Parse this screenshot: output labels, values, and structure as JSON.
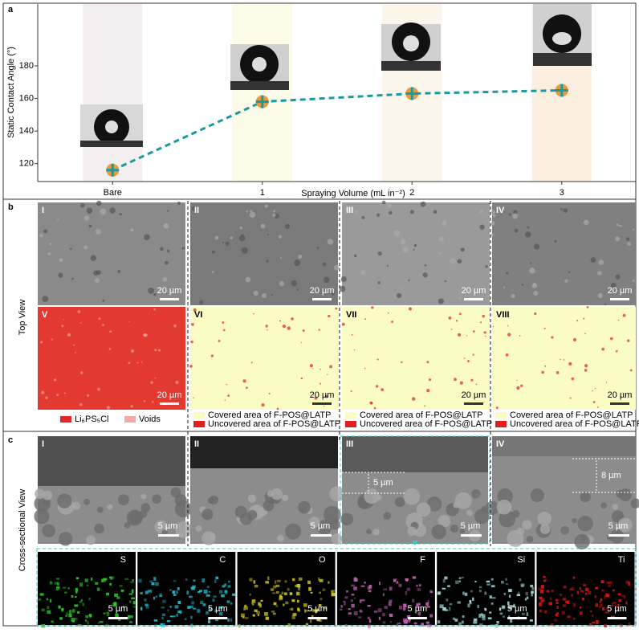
{
  "chart_data": {
    "type": "line",
    "panel_label": "a",
    "ylabel": "Static Contact Angle (°)",
    "xlabel": "Spraying Volume (mL in⁻²)",
    "categories": [
      "Bare",
      "1",
      "2",
      "3"
    ],
    "values": [
      116,
      158,
      163,
      165
    ],
    "color": "#1a9aa0",
    "marker_color": "#e99a3c",
    "band_colors": [
      "#f3eef0",
      "#fbfbe8",
      "#fcf5ea",
      "#fcefdf"
    ],
    "ylim": [
      109,
      218
    ],
    "yticks": [
      120,
      140,
      160,
      180
    ]
  },
  "panel_b": {
    "label": "b",
    "side_label": "Top View",
    "images": [
      {
        "label": "I",
        "scale": "20 µm"
      },
      {
        "label": "II",
        "scale": "20 µm"
      },
      {
        "label": "III",
        "scale": "20 µm"
      },
      {
        "label": "IV",
        "scale": "20 µm"
      },
      {
        "label": "V",
        "scale": "20 µm"
      },
      {
        "label": "VI",
        "scale": "20 µm"
      },
      {
        "label": "VII",
        "scale": "20 µm"
      },
      {
        "label": "VIII",
        "scale": "20 µm"
      }
    ],
    "legends": [
      [
        "Li₆PS₅Cl",
        "Voids"
      ],
      [
        "Covered area of F-POS@LATP",
        "Uncovered area of F-POS@LATP"
      ],
      [
        "Covered area of F-POS@LATP",
        "Uncovered area of F-POS@LATP"
      ],
      [
        "Covered area of F-POS@LATP",
        "Uncovered area of F-POS@LATP"
      ]
    ]
  },
  "panel_c": {
    "label": "c",
    "side_label": "Cross-sectional View",
    "images": [
      {
        "label": "I",
        "scale": "5 µm"
      },
      {
        "label": "II",
        "scale": "5 µm"
      },
      {
        "label": "III",
        "scale": "5 µm",
        "thickness": "5 µm"
      },
      {
        "label": "IV",
        "scale": "5 µm",
        "thickness": "8 µm"
      }
    ],
    "maps": [
      {
        "element": "S",
        "scale": "5 µm",
        "color": "#2ec82e"
      },
      {
        "element": "C",
        "scale": "5 µm",
        "color": "#20b8c8"
      },
      {
        "element": "O",
        "scale": "5 µm",
        "color": "#c8c020"
      },
      {
        "element": "F",
        "scale": "5 µm",
        "color": "#c060b0"
      },
      {
        "element": "Si",
        "scale": "5 µm",
        "color": "#a0d8d8"
      },
      {
        "element": "Ti",
        "scale": "5 µm",
        "color": "#d01818"
      }
    ]
  }
}
